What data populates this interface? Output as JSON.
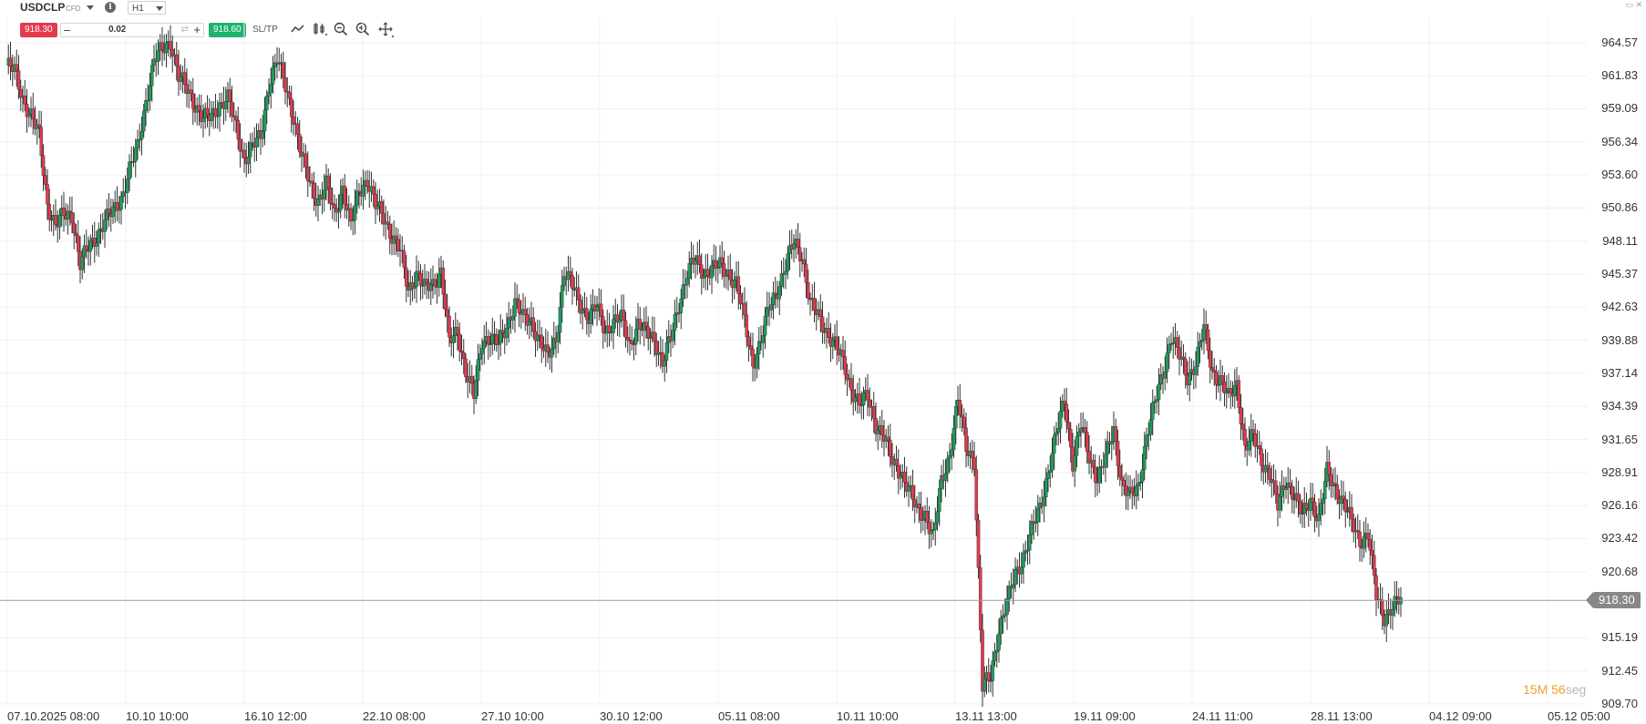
{
  "toolbar": {
    "symbol": "USDCLP",
    "symbol_type": "CFD",
    "timeframe": "H1",
    "sell_price": "918.30",
    "buy_price": "918.60",
    "quantity": "0.02",
    "minus": "–",
    "plus": "+",
    "sltp": "SL/TP"
  },
  "countdown": {
    "minutes": "15",
    "minutes_unit": "M",
    "seconds": "56",
    "seconds_unit": "seg"
  },
  "last_price_label": "918.30",
  "colors": {
    "up": "#1e9e5e",
    "down": "#e23b4f",
    "grid": "#f0f0f0",
    "last_line": "#9a9a9a"
  },
  "chart_data": {
    "type": "candlestick",
    "symbol": "USDCLP",
    "timeframe": "H1",
    "y_ticks": [
      "964.57",
      "961.83",
      "959.09",
      "956.34",
      "953.60",
      "950.86",
      "948.11",
      "945.37",
      "942.63",
      "939.88",
      "937.14",
      "934.39",
      "931.65",
      "928.91",
      "926.16",
      "923.42",
      "920.68",
      "915.19",
      "912.45",
      "909.70"
    ],
    "x_ticks": [
      "07.10.2025 08:00",
      "10.10 10:00",
      "16.10 12:00",
      "22.10 08:00",
      "27.10 10:00",
      "30.10 12:00",
      "05.11 08:00",
      "10.11 10:00",
      "13.11 13:00",
      "19.11 09:00",
      "24.11 11:00",
      "28.11 13:00",
      "04.12 09:00",
      "05.12 05:00"
    ],
    "ylim": [
      909.7,
      966.0
    ],
    "last_price": 918.3,
    "close_path": [
      [
        0,
        962.7
      ],
      [
        4,
        962.2
      ],
      [
        8,
        960.0
      ],
      [
        12,
        958.5
      ],
      [
        16,
        956.8
      ],
      [
        20,
        951.2
      ],
      [
        24,
        949.4
      ],
      [
        28,
        950.2
      ],
      [
        32,
        950.4
      ],
      [
        36,
        946.2
      ],
      [
        40,
        947.5
      ],
      [
        44,
        948.6
      ],
      [
        48,
        949.8
      ],
      [
        52,
        950.5
      ],
      [
        56,
        951.7
      ],
      [
        60,
        954.0
      ],
      [
        64,
        955.8
      ],
      [
        68,
        959.8
      ],
      [
        72,
        963.0
      ],
      [
        76,
        964.0
      ],
      [
        80,
        964.8
      ],
      [
        84,
        961.7
      ],
      [
        88,
        960.7
      ],
      [
        92,
        959.5
      ],
      [
        96,
        958.2
      ],
      [
        100,
        958.4
      ],
      [
        104,
        959.5
      ],
      [
        108,
        959.9
      ],
      [
        112,
        957.5
      ],
      [
        116,
        955.0
      ],
      [
        120,
        955.9
      ],
      [
        124,
        956.7
      ],
      [
        128,
        961.2
      ],
      [
        132,
        963.1
      ],
      [
        136,
        961.0
      ],
      [
        140,
        958.5
      ],
      [
        144,
        955.0
      ],
      [
        148,
        952.9
      ],
      [
        152,
        951.5
      ],
      [
        156,
        952.7
      ],
      [
        160,
        950.3
      ],
      [
        164,
        952.6
      ],
      [
        168,
        949.3
      ],
      [
        172,
        952.3
      ],
      [
        176,
        953.3
      ],
      [
        180,
        951.0
      ],
      [
        184,
        950.1
      ],
      [
        188,
        948.6
      ],
      [
        192,
        947.2
      ],
      [
        196,
        944.0
      ],
      [
        200,
        945.5
      ],
      [
        204,
        944.1
      ],
      [
        208,
        944.5
      ],
      [
        212,
        945.7
      ],
      [
        216,
        939.6
      ],
      [
        220,
        940.6
      ],
      [
        224,
        937.4
      ],
      [
        228,
        935.2
      ],
      [
        232,
        939.9
      ],
      [
        236,
        940.2
      ],
      [
        240,
        939.5
      ],
      [
        244,
        941.0
      ],
      [
        248,
        943.2
      ],
      [
        252,
        941.6
      ],
      [
        256,
        941.4
      ],
      [
        260,
        940.0
      ],
      [
        264,
        938.3
      ],
      [
        268,
        940.0
      ],
      [
        272,
        945.6
      ],
      [
        276,
        944.3
      ],
      [
        280,
        942.9
      ],
      [
        284,
        941.8
      ],
      [
        288,
        942.6
      ],
      [
        292,
        940.7
      ],
      [
        296,
        941.4
      ],
      [
        300,
        941.6
      ],
      [
        304,
        939.6
      ],
      [
        308,
        941.2
      ],
      [
        312,
        940.4
      ],
      [
        316,
        940.1
      ],
      [
        320,
        938.0
      ],
      [
        324,
        940.0
      ],
      [
        328,
        943.0
      ],
      [
        332,
        945.5
      ],
      [
        336,
        946.5
      ],
      [
        340,
        945.5
      ],
      [
        344,
        945.8
      ],
      [
        348,
        946.0
      ],
      [
        352,
        945.5
      ],
      [
        356,
        944.6
      ],
      [
        360,
        941.4
      ],
      [
        364,
        938.0
      ],
      [
        368,
        939.8
      ],
      [
        372,
        942.6
      ],
      [
        376,
        944.2
      ],
      [
        380,
        946.0
      ],
      [
        384,
        948.0
      ],
      [
        388,
        947.0
      ],
      [
        392,
        942.9
      ],
      [
        396,
        941.8
      ],
      [
        400,
        940.7
      ],
      [
        404,
        939.5
      ],
      [
        408,
        938.0
      ],
      [
        412,
        936.0
      ],
      [
        416,
        934.5
      ],
      [
        420,
        935.2
      ],
      [
        424,
        933.0
      ],
      [
        428,
        931.8
      ],
      [
        432,
        929.8
      ],
      [
        436,
        929.1
      ],
      [
        440,
        927.4
      ],
      [
        444,
        925.8
      ],
      [
        448,
        925.5
      ],
      [
        452,
        923.4
      ],
      [
        456,
        928.2
      ],
      [
        460,
        930.5
      ],
      [
        464,
        934.8
      ],
      [
        468,
        931.0
      ],
      [
        472,
        930.0
      ],
      [
        476,
        911.0
      ],
      [
        480,
        912.0
      ],
      [
        484,
        916.0
      ],
      [
        488,
        918.0
      ],
      [
        492,
        920.5
      ],
      [
        496,
        922.0
      ],
      [
        500,
        924.0
      ],
      [
        504,
        926.0
      ],
      [
        508,
        929.0
      ],
      [
        512,
        932.0
      ],
      [
        516,
        935.0
      ],
      [
        520,
        929.8
      ],
      [
        524,
        932.8
      ],
      [
        528,
        930.2
      ],
      [
        532,
        928.5
      ],
      [
        536,
        930.0
      ],
      [
        540,
        932.5
      ],
      [
        544,
        928.0
      ],
      [
        548,
        926.8
      ],
      [
        552,
        927.7
      ],
      [
        556,
        932.0
      ],
      [
        560,
        934.5
      ],
      [
        564,
        937.2
      ],
      [
        568,
        940.3
      ],
      [
        572,
        938.5
      ],
      [
        576,
        936.8
      ],
      [
        580,
        938.1
      ],
      [
        584,
        940.8
      ],
      [
        588,
        937.3
      ],
      [
        592,
        936.6
      ],
      [
        596,
        935.0
      ],
      [
        600,
        936.3
      ],
      [
        604,
        931.0
      ],
      [
        608,
        931.8
      ],
      [
        612,
        930.0
      ],
      [
        616,
        928.9
      ],
      [
        620,
        926.0
      ],
      [
        624,
        928.4
      ],
      [
        628,
        927.0
      ],
      [
        632,
        925.2
      ],
      [
        636,
        926.8
      ],
      [
        640,
        925.0
      ],
      [
        644,
        928.9
      ],
      [
        648,
        927.7
      ],
      [
        652,
        926.4
      ],
      [
        656,
        924.7
      ],
      [
        660,
        923.3
      ],
      [
        664,
        923.8
      ],
      [
        668,
        918.6
      ],
      [
        672,
        917.0
      ],
      [
        676,
        917.8
      ],
      [
        680,
        918.3
      ]
    ]
  }
}
